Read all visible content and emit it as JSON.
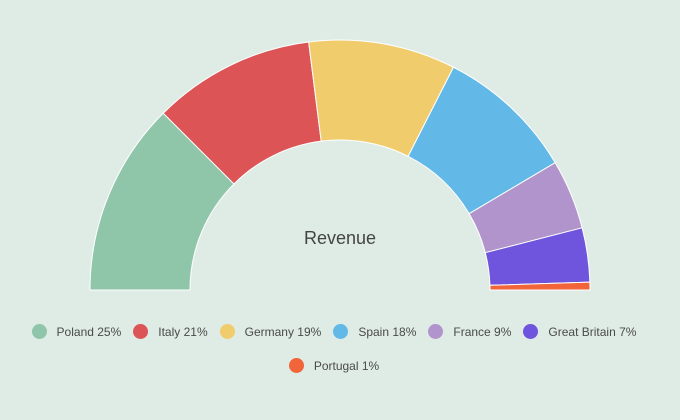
{
  "chart_data": {
    "type": "pie",
    "variant": "semi-donut",
    "title": "Revenue",
    "categories": [
      "Poland",
      "Italy",
      "Germany",
      "Spain",
      "France",
      "Great Britain",
      "Portugal"
    ],
    "values": [
      25,
      21,
      19,
      18,
      9,
      7,
      1
    ],
    "colors": [
      "#8fc5a8",
      "#dc5455",
      "#f0cc6c",
      "#62b8e6",
      "#b094cb",
      "#6f55dd",
      "#f2653a"
    ],
    "legend_labels": [
      "Poland 25%",
      "Italy 21%",
      "Germany 19%",
      "Spain 18%",
      "France 9%",
      "Great Britain 7%",
      "Portugal 1%"
    ],
    "legend_position": "bottom"
  }
}
